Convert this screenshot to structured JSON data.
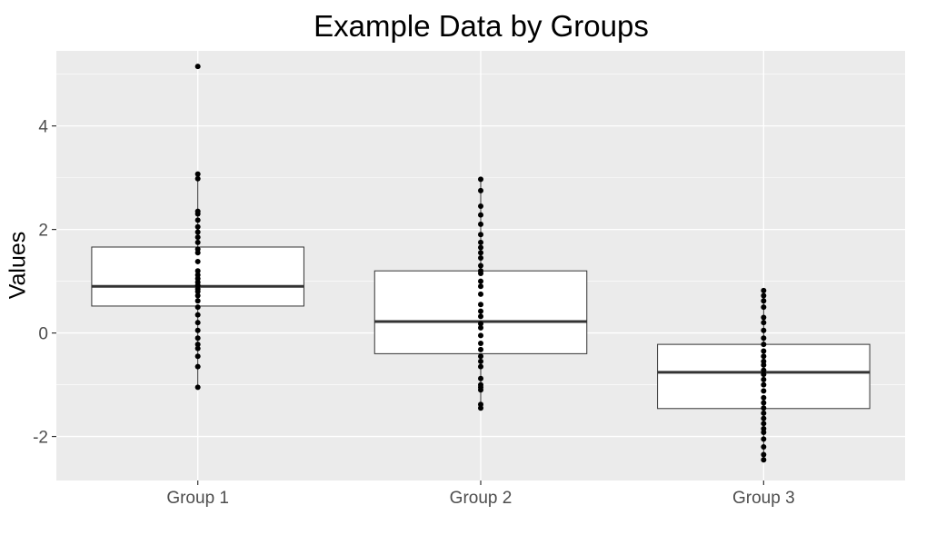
{
  "chart_data": {
    "type": "boxplot",
    "title": "Example Data by Groups",
    "xlabel": "",
    "ylabel": "Values",
    "ylim": [
      -2.85,
      5.45
    ],
    "y_ticks": [
      -2,
      0,
      2,
      4
    ],
    "y_tick_labels": [
      "-2",
      "0",
      "2",
      "4"
    ],
    "grid": true,
    "categories": [
      "Group 1",
      "Group 2",
      "Group 3"
    ],
    "boxes": [
      {
        "q1": 0.52,
        "median": 0.9,
        "q3": 1.66,
        "whisker_low": -1.05,
        "whisker_high": 3.07
      },
      {
        "q1": -0.4,
        "median": 0.22,
        "q3": 1.2,
        "whisker_low": -1.45,
        "whisker_high": 2.97
      },
      {
        "q1": -1.46,
        "median": -0.76,
        "q3": -0.22,
        "whisker_low": -2.45,
        "whisker_high": 0.82
      }
    ],
    "points": [
      [
        5.15,
        3.07,
        2.98,
        2.35,
        2.3,
        2.18,
        2.05,
        1.95,
        1.85,
        1.75,
        1.62,
        1.55,
        1.38,
        1.2,
        1.12,
        1.05,
        0.98,
        0.92,
        0.85,
        0.8,
        0.72,
        0.62,
        0.5,
        0.35,
        0.2,
        0.05,
        -0.1,
        -0.22,
        -0.3,
        -0.45,
        -0.65,
        -1.05
      ],
      [
        2.97,
        2.75,
        2.45,
        2.28,
        2.1,
        1.9,
        1.75,
        1.65,
        1.55,
        1.45,
        1.3,
        1.2,
        1.15,
        1.0,
        0.9,
        0.75,
        0.55,
        0.42,
        0.32,
        0.18,
        0.1,
        -0.05,
        -0.2,
        -0.32,
        -0.45,
        -0.55,
        -0.65,
        -0.88,
        -1.0,
        -1.05,
        -1.1,
        -1.38,
        -1.45
      ],
      [
        0.82,
        0.72,
        0.62,
        0.5,
        0.3,
        0.2,
        0.05,
        -0.1,
        -0.22,
        -0.35,
        -0.45,
        -0.55,
        -0.62,
        -0.72,
        -0.8,
        -0.9,
        -1.0,
        -1.12,
        -1.25,
        -1.35,
        -1.45,
        -1.55,
        -1.65,
        -1.75,
        -1.85,
        -1.92,
        -2.05,
        -2.2,
        -2.35,
        -2.45
      ]
    ]
  }
}
